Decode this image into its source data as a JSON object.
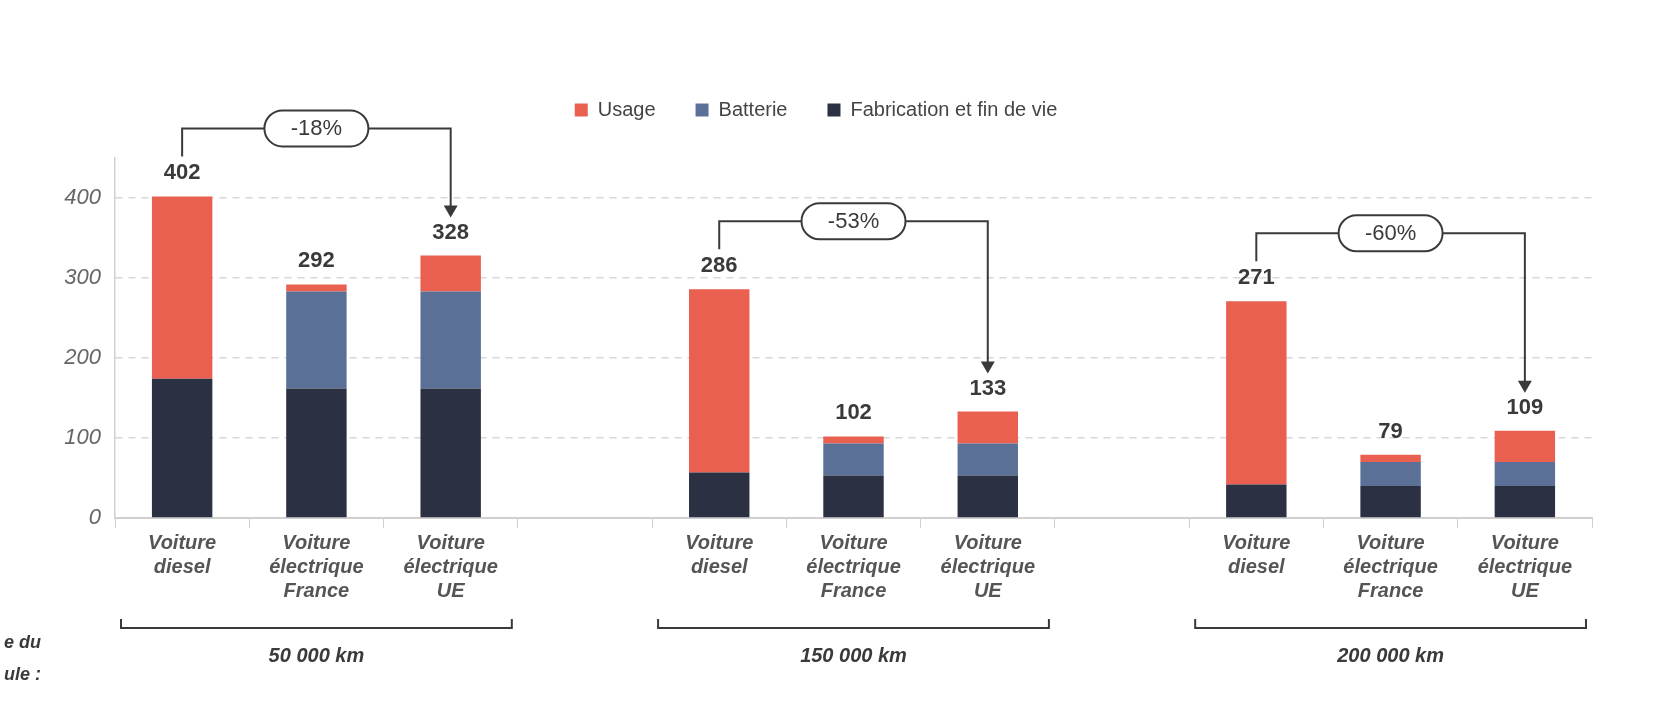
{
  "chart_data": {
    "type": "bar",
    "stacked": true,
    "categories": [
      "Voiture diesel",
      "Voiture électrique France",
      "Voiture électrique UE",
      null,
      "Voiture diesel",
      "Voiture électrique France",
      "Voiture électrique UE",
      null,
      "Voiture diesel",
      "Voiture électrique France",
      "Voiture électrique UE"
    ],
    "series": [
      {
        "name": "Fabrication et fin de vie",
        "color": "#2b3043",
        "values": [
          174,
          162,
          162,
          null,
          57,
          53,
          53,
          null,
          42,
          40,
          40
        ]
      },
      {
        "name": "Batterie",
        "color": "#5a7097",
        "values": [
          null,
          121,
          121,
          null,
          null,
          40,
          40,
          null,
          null,
          30,
          30
        ]
      },
      {
        "name": "Usage",
        "color": "#e95f50",
        "values": [
          228,
          9,
          45,
          null,
          229,
          9,
          40,
          null,
          229,
          9,
          39
        ]
      }
    ],
    "totals": [
      "402",
      "292",
      "328",
      null,
      "286",
      "102",
      "133",
      null,
      "271",
      "79",
      "109"
    ],
    "ylim": [
      0,
      450
    ],
    "yticks": [
      0,
      100,
      200,
      300,
      400
    ],
    "grid": "y",
    "legend": "top",
    "annotations": [
      "-18%",
      "-53%",
      "-60%",
      "50 000 km",
      "150 000 km",
      "200 000 km",
      "e du",
      "ule :"
    ]
  }
}
